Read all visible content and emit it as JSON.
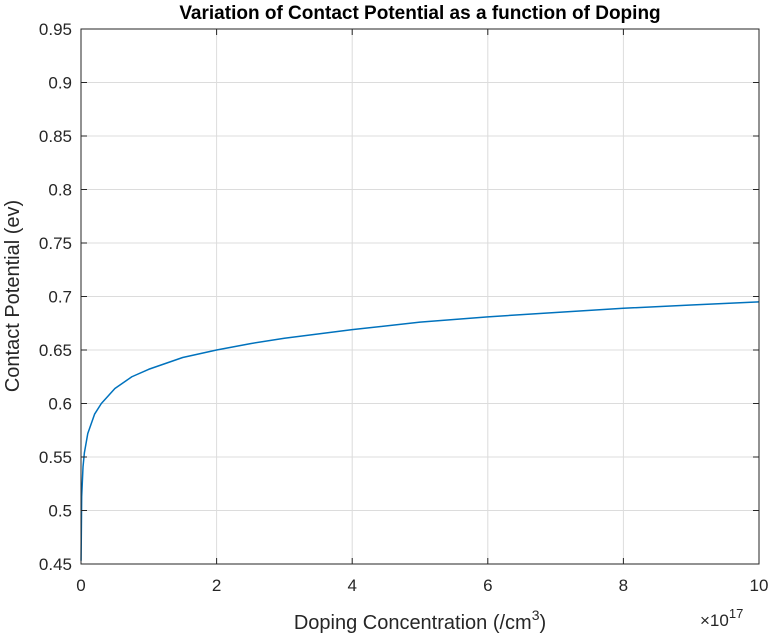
{
  "chart_data": {
    "type": "line",
    "title": "Variation of Contact Potential as a function of Doping",
    "xlabel": "Doping Concentration (/cm",
    "xlabel_superscript": "3",
    "xlabel_suffix": ")",
    "ylabel": "Contact Potential (ev)",
    "x_exponent_base": "×10",
    "x_exponent": "17",
    "xlim": [
      0,
      10
    ],
    "ylim": [
      0.45,
      0.95
    ],
    "xticks": [
      0,
      2,
      4,
      6,
      8,
      10
    ],
    "xtick_labels": [
      "0",
      "2",
      "4",
      "6",
      "8",
      "10"
    ],
    "yticks": [
      0.45,
      0.5,
      0.55,
      0.6,
      0.65,
      0.7,
      0.75,
      0.8,
      0.85,
      0.9,
      0.95
    ],
    "ytick_labels": [
      "0.45",
      "0.5",
      "0.55",
      "0.6",
      "0.65",
      "0.7",
      "0.75",
      "0.8",
      "0.85",
      "0.9",
      "0.95"
    ],
    "grid": true,
    "series": [
      {
        "color": "#0072BD",
        "x": [
          0.001,
          0.01,
          0.03,
          0.05,
          0.1,
          0.2,
          0.3,
          0.5,
          0.75,
          1,
          1.5,
          2,
          2.5,
          3,
          4,
          5,
          6,
          7,
          8,
          9,
          10
        ],
        "y": [
          0.453,
          0.513,
          0.541,
          0.554,
          0.572,
          0.59,
          0.6,
          0.614,
          0.625,
          0.632,
          0.643,
          0.65,
          0.656,
          0.661,
          0.669,
          0.676,
          0.681,
          0.685,
          0.689,
          0.692,
          0.695
        ],
        "note_ignore": ""
      }
    ]
  }
}
